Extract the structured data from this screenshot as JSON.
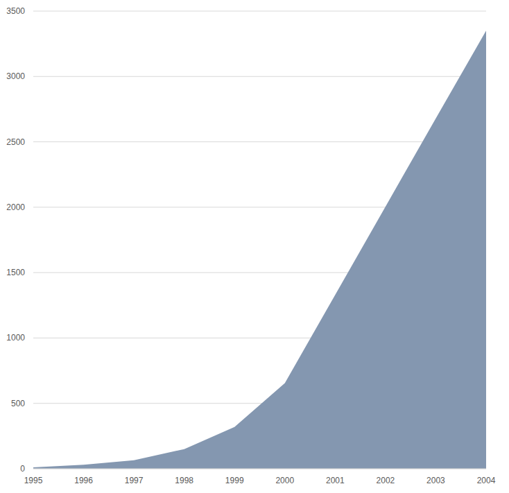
{
  "chart_data": {
    "type": "area",
    "categories": [
      "1995",
      "1996",
      "1997",
      "1998",
      "1999",
      "2000",
      "2001",
      "2002",
      "2003",
      "2004"
    ],
    "values": [
      10,
      30,
      65,
      150,
      320,
      655,
      1330,
      2005,
      2680,
      3350
    ],
    "color": "#8497b0",
    "ylim": [
      0,
      3500
    ],
    "yticks": [
      0,
      500,
      1000,
      1500,
      2000,
      2500,
      3000,
      3500
    ],
    "grid": true
  }
}
